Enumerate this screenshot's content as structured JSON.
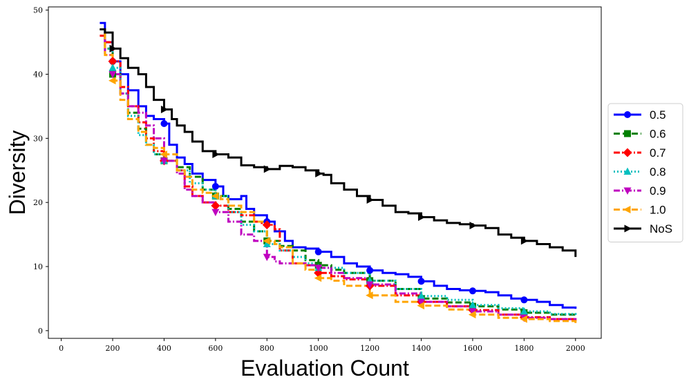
{
  "chart_data": {
    "type": "line",
    "title": "",
    "xlabel": "Evaluation Count",
    "ylabel": "Diversity",
    "xlim": [
      -50,
      2100
    ],
    "ylim": [
      -1.2,
      50.5
    ],
    "xticks": [
      0,
      200,
      400,
      600,
      800,
      1000,
      1200,
      1400,
      1600,
      1800,
      2000
    ],
    "yticks": [
      0,
      10,
      20,
      30,
      40,
      50
    ],
    "grid": false,
    "legend_position": "center-right",
    "series": [
      {
        "name": "0.5",
        "color": "#0000ff",
        "dash": "solid",
        "marker": "circle",
        "x": [
          150,
          170,
          200,
          230,
          260,
          300,
          330,
          360,
          400,
          420,
          450,
          480,
          510,
          550,
          600,
          630,
          650,
          700,
          720,
          750,
          800,
          830,
          870,
          900,
          950,
          1000,
          1050,
          1100,
          1150,
          1200,
          1250,
          1300,
          1350,
          1400,
          1450,
          1500,
          1550,
          1600,
          1650,
          1700,
          1750,
          1800,
          1850,
          1900,
          1950,
          2000
        ],
        "y": [
          48,
          45,
          42,
          40,
          37.5,
          35,
          33.5,
          33,
          32.3,
          29,
          27,
          26,
          24.5,
          23.5,
          22.5,
          21,
          20.5,
          21,
          19,
          18,
          17,
          15.5,
          14,
          13,
          12.8,
          12.3,
          11.5,
          10.5,
          10,
          9.4,
          9,
          8.8,
          8.4,
          7.7,
          7,
          6.5,
          6.3,
          6.2,
          6,
          5.5,
          5,
          4.8,
          4.5,
          4,
          3.6,
          3.4
        ]
      },
      {
        "name": "0.6",
        "color": "#008000",
        "dash": "dashed",
        "marker": "square",
        "x": [
          150,
          170,
          200,
          230,
          260,
          300,
          330,
          360,
          400,
          450,
          500,
          550,
          600,
          650,
          700,
          750,
          800,
          850,
          900,
          950,
          1000,
          1050,
          1100,
          1200,
          1300,
          1400,
          1500,
          1600,
          1700,
          1800,
          1900,
          2000
        ],
        "y": [
          47,
          44,
          40,
          37,
          34,
          31.5,
          29,
          27.5,
          26.5,
          25.5,
          24,
          22,
          21,
          19,
          17,
          15.5,
          14,
          13.2,
          12.5,
          11,
          10.2,
          9.5,
          9,
          7.8,
          6.5,
          5,
          4.4,
          3.8,
          3.3,
          2.8,
          2.5,
          2.3
        ]
      },
      {
        "name": "0.7",
        "color": "#ff0000",
        "dash": "dashdot",
        "marker": "diamond",
        "x": [
          150,
          170,
          200,
          230,
          260,
          300,
          330,
          360,
          400,
          450,
          480,
          510,
          550,
          600,
          650,
          700,
          750,
          780,
          800,
          830,
          850,
          900,
          950,
          1000,
          1050,
          1100,
          1200,
          1300,
          1400,
          1500,
          1600,
          1700,
          1800,
          1900,
          2000
        ],
        "y": [
          46,
          45,
          42,
          38,
          35,
          32.5,
          30,
          28,
          26.5,
          25,
          22.5,
          21,
          20,
          19.5,
          18.5,
          18,
          17,
          16.8,
          16.5,
          15.8,
          12.5,
          10.5,
          10.2,
          9,
          8.5,
          8,
          7,
          5.5,
          4.5,
          3.8,
          3.2,
          2.5,
          2.1,
          1.8,
          1.5
        ]
      },
      {
        "name": "0.8",
        "color": "#00bfbf",
        "dash": "dotted",
        "marker": "triangle-up",
        "x": [
          150,
          170,
          200,
          230,
          260,
          300,
          330,
          360,
          400,
          450,
          500,
          550,
          600,
          650,
          700,
          750,
          800,
          850,
          900,
          950,
          1000,
          1100,
          1200,
          1300,
          1400,
          1500,
          1600,
          1700,
          1800,
          1900,
          2000
        ],
        "y": [
          47,
          44,
          41,
          37,
          33.5,
          30.5,
          29,
          27.5,
          26.5,
          25,
          23,
          22,
          21,
          18.5,
          16.5,
          15.5,
          13.5,
          12.5,
          11.5,
          10.5,
          9.8,
          9,
          7.8,
          6.5,
          5.4,
          4.8,
          4,
          3.5,
          3,
          2.6,
          2.3
        ]
      },
      {
        "name": "0.9",
        "color": "#bf00bf",
        "dash": "dashdot",
        "marker": "triangle-down",
        "x": [
          150,
          170,
          200,
          230,
          260,
          300,
          330,
          360,
          400,
          450,
          480,
          510,
          550,
          600,
          650,
          700,
          750,
          800,
          830,
          850,
          900,
          950,
          1000,
          1050,
          1100,
          1200,
          1300,
          1400,
          1500,
          1600,
          1700,
          1800,
          1900,
          2000
        ],
        "y": [
          47,
          43,
          40,
          37,
          35,
          34,
          32,
          30,
          26.5,
          24.5,
          22,
          21,
          20,
          18.5,
          17,
          15,
          14,
          11.5,
          10.8,
          10.5,
          10.5,
          10.2,
          9.8,
          9,
          8.2,
          7.2,
          5.8,
          4.5,
          3.8,
          3,
          2.5,
          2,
          1.8,
          1.6
        ]
      },
      {
        "name": "1.0",
        "color": "#ffa500",
        "dash": "dashed",
        "marker": "triangle-left",
        "x": [
          150,
          170,
          200,
          230,
          260,
          300,
          330,
          360,
          400,
          450,
          480,
          510,
          550,
          600,
          620,
          650,
          700,
          750,
          800,
          830,
          850,
          900,
          950,
          1000,
          1050,
          1100,
          1200,
          1300,
          1400,
          1500,
          1600,
          1700,
          1800,
          1900,
          2000
        ],
        "y": [
          47,
          43,
          39,
          36,
          33,
          31,
          29,
          28.5,
          27.5,
          25,
          24,
          22,
          21.5,
          21,
          20.5,
          19.5,
          18.5,
          17,
          14,
          13.5,
          13,
          10.5,
          9.5,
          8.2,
          7.8,
          7,
          5.5,
          4.5,
          3.9,
          3.3,
          2.5,
          2,
          1.8,
          1.5,
          1.2
        ]
      },
      {
        "name": "NoS",
        "color": "#000000",
        "dash": "solid",
        "marker": "triangle-right",
        "x": [
          150,
          170,
          200,
          230,
          260,
          300,
          330,
          360,
          400,
          430,
          450,
          480,
          510,
          550,
          600,
          650,
          700,
          750,
          800,
          850,
          900,
          950,
          1000,
          1020,
          1050,
          1100,
          1150,
          1200,
          1250,
          1300,
          1350,
          1400,
          1450,
          1500,
          1550,
          1600,
          1650,
          1700,
          1750,
          1800,
          1850,
          1900,
          1950,
          2000
        ],
        "y": [
          47,
          46.5,
          44,
          42.5,
          41,
          40,
          38,
          36,
          34.5,
          33,
          32,
          31,
          29.5,
          28,
          27.5,
          27,
          25.8,
          25.5,
          25.2,
          25.7,
          25.5,
          25,
          24.5,
          24.3,
          23,
          22,
          21,
          20.4,
          19.5,
          18.5,
          18.3,
          17.7,
          17.2,
          16.8,
          16.6,
          16.4,
          16,
          15,
          14.5,
          14,
          13.5,
          13,
          12.5,
          11.5
        ]
      }
    ]
  }
}
